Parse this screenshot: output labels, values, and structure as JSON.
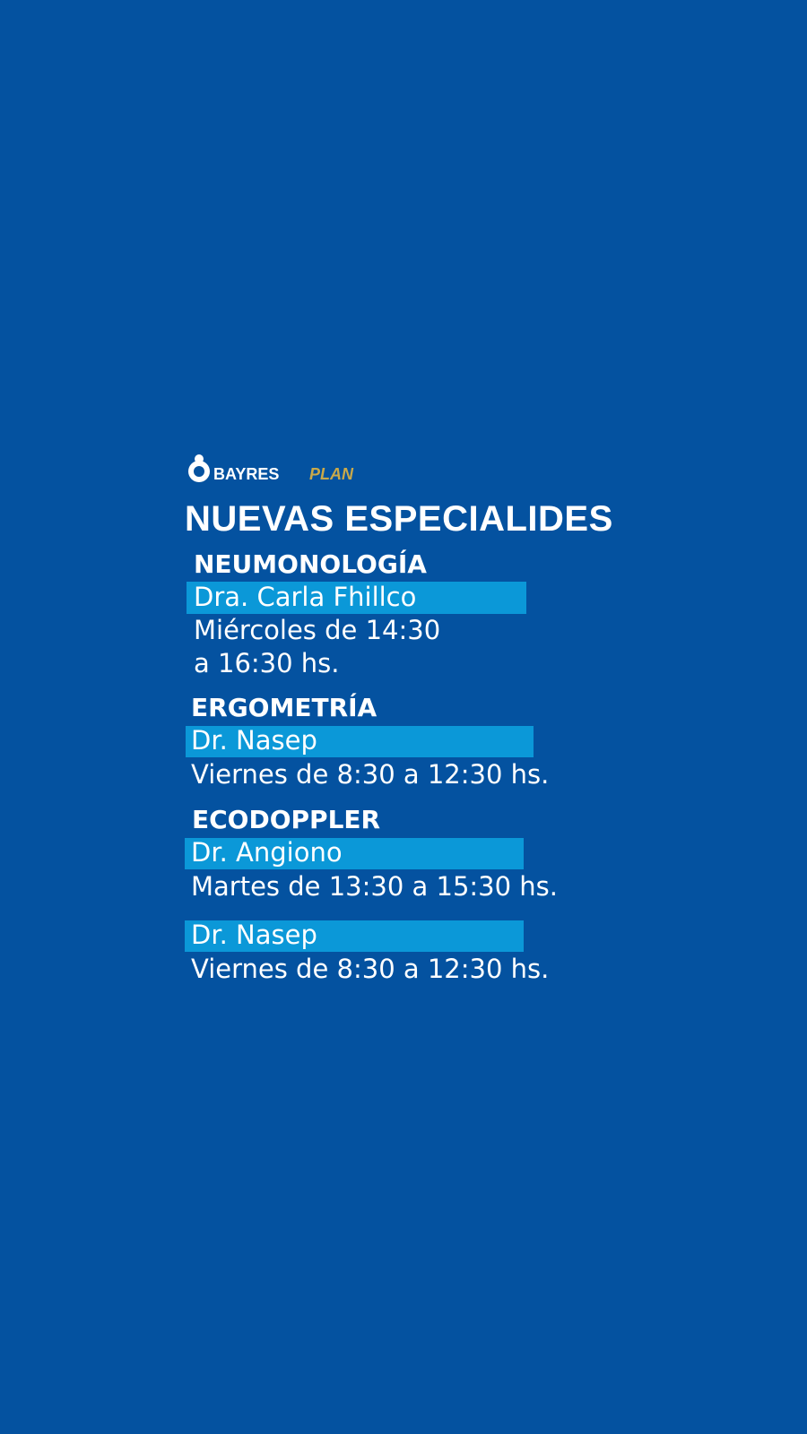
{
  "logo": {
    "brand": "BAYRES",
    "product": "PLAN"
  },
  "title": "NUEVAS ESPECIALIDES",
  "sections": [
    {
      "heading": "NEUMONOLOGÍA",
      "doctors": [
        {
          "name": "Dra. Carla Fhillco",
          "schedule": [
            "Miércoles de 14:30",
            "a 16:30 hs."
          ]
        }
      ]
    },
    {
      "heading": "ERGOMETRÍA",
      "doctors": [
        {
          "name": "Dr. Nasep",
          "schedule": [
            "Viernes de 8:30 a 12:30 hs."
          ]
        }
      ]
    },
    {
      "heading": "ECODOPPLER",
      "doctors": [
        {
          "name": "Dr. Angiono",
          "schedule": [
            "Martes de 13:30 a 15:30 hs."
          ]
        },
        {
          "name": "Dr. Nasep",
          "schedule": [
            "Viernes de 8:30 a 12:30 hs."
          ]
        }
      ]
    }
  ]
}
